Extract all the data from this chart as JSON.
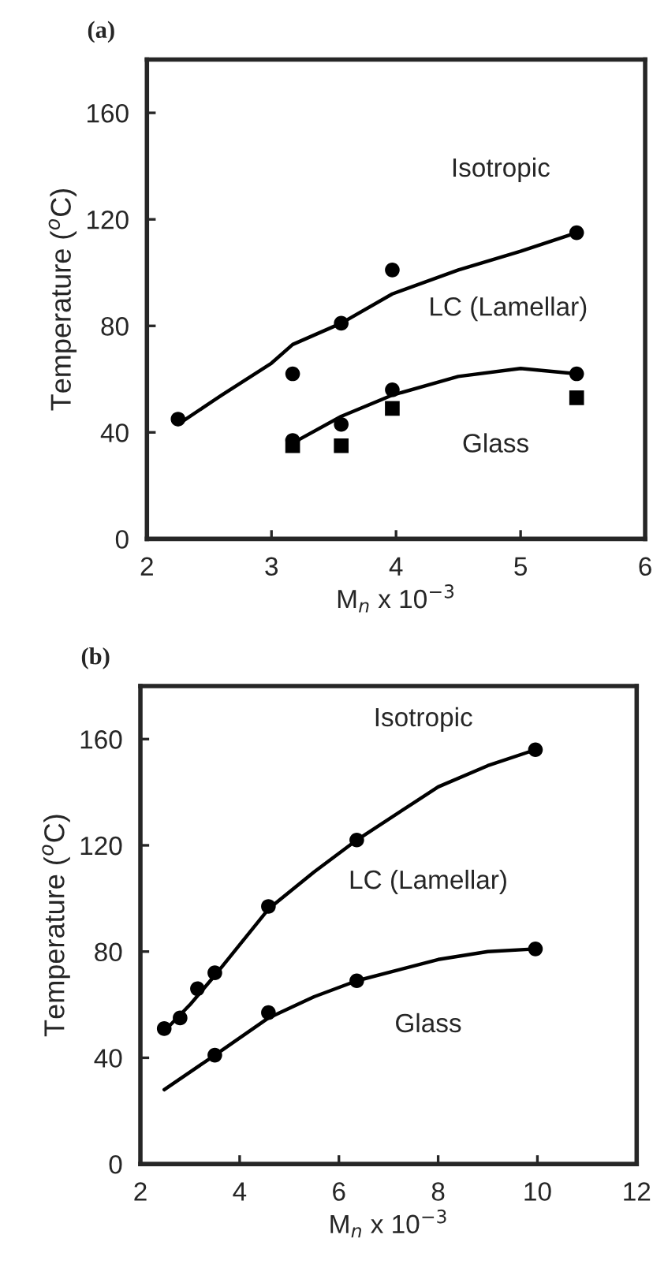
{
  "chart_data": [
    {
      "type": "scatter",
      "title": "(a)",
      "xlabel": "M$_{n}$ x 10$^{−3}$",
      "ylabel": "Temperature ($^{o}$C)",
      "xlim": [
        2,
        6
      ],
      "ylim": [
        0,
        180
      ],
      "xticks": [
        2,
        3,
        4,
        5,
        6
      ],
      "yticks": [
        0,
        40,
        80,
        120,
        160
      ],
      "grid": false,
      "legend": false,
      "series": [
        {
          "marker": "circle",
          "color": "#000000",
          "x": [
            2.25,
            3.17,
            3.56,
            3.97,
            5.45
          ],
          "values": [
            45,
            62,
            81,
            101,
            115
          ]
        },
        {
          "marker": "circle",
          "color": "#000000",
          "x": [
            3.17,
            3.56,
            3.97,
            5.45
          ],
          "values": [
            37,
            43,
            56,
            62
          ]
        },
        {
          "marker": "square",
          "color": "#000000",
          "x": [
            3.17,
            3.56,
            3.97,
            5.45
          ],
          "values": [
            35,
            35,
            49,
            53
          ]
        },
        {
          "type": "line",
          "marker": "none",
          "color": "#000000",
          "x": [
            2.25,
            2.6,
            3,
            3.17,
            3.56,
            3.97,
            4.5,
            5,
            5.45
          ],
          "values": [
            43,
            54,
            66,
            73,
            81,
            92,
            101,
            108,
            115
          ]
        },
        {
          "type": "line",
          "marker": "none",
          "color": "#000000",
          "x": [
            3.17,
            3.56,
            3.97,
            4.5,
            5,
            5.45
          ],
          "values": [
            36,
            46,
            54,
            61,
            64,
            62
          ]
        }
      ],
      "annotations": [
        "Isotropic",
        "LC (Lamellar)",
        "Glass"
      ]
    },
    {
      "type": "scatter",
      "title": "(b)",
      "xlabel": "M$_{n}$ x 10$^{−3}$",
      "ylabel": "Temperature ($^{o}$C)",
      "xlim": [
        2,
        12
      ],
      "ylim": [
        0,
        180
      ],
      "xticks": [
        2,
        4,
        6,
        8,
        10,
        12
      ],
      "yticks": [
        0,
        40,
        80,
        120,
        160
      ],
      "grid": false,
      "legend": false,
      "series": [
        {
          "marker": "circle",
          "color": "#000000",
          "x": [
            2.48,
            2.8,
            3.15,
            3.5,
            4.58,
            6.36,
            9.96
          ],
          "values": [
            51,
            55,
            66,
            72,
            97,
            122,
            156
          ]
        },
        {
          "marker": "circle",
          "color": "#000000",
          "x": [
            3.5,
            4.58,
            6.36,
            9.96
          ],
          "values": [
            41,
            57,
            69,
            81
          ]
        },
        {
          "type": "line",
          "marker": "none",
          "color": "#000000",
          "x": [
            2.48,
            3,
            3.5,
            4.58,
            5.5,
            6.36,
            8,
            9,
            9.96
          ],
          "values": [
            50,
            60,
            71,
            96,
            110,
            122,
            142,
            150,
            156
          ]
        },
        {
          "type": "line",
          "marker": "none",
          "color": "#000000",
          "x": [
            2.48,
            3.5,
            4.58,
            5.5,
            6.36,
            8,
            9,
            9.96
          ],
          "values": [
            28,
            41,
            55,
            63,
            69,
            77,
            80,
            81
          ]
        }
      ],
      "annotations": [
        "Isotropic",
        "LC (Lamellar)",
        "Glass"
      ]
    }
  ]
}
